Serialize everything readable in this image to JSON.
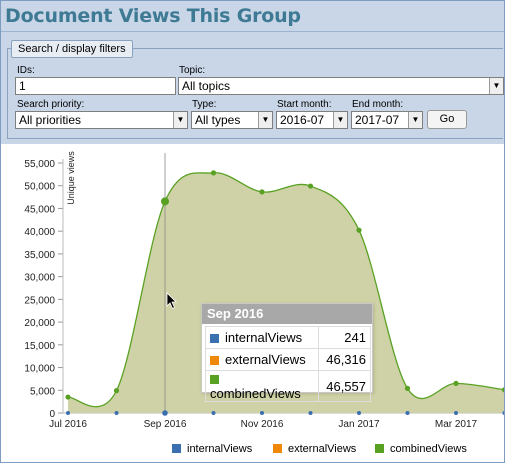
{
  "header": {
    "title": "Document Views This Group"
  },
  "filters": {
    "legend": "Search / display filters",
    "ids_label": "IDs:",
    "ids_value": "1",
    "topic_label": "Topic:",
    "topic_value": "All topics",
    "priority_label": "Search priority:",
    "priority_value": "All priorities",
    "type_label": "Type:",
    "type_value": "All types",
    "start_label": "Start month:",
    "start_value": "2016-07",
    "end_label": "End month:",
    "end_value": "2017-07",
    "go_label": "Go"
  },
  "chart_data": {
    "type": "area",
    "ylabel": "Unique views",
    "xlabel": "",
    "ylim": [
      0,
      55000
    ],
    "yticks": [
      "0",
      "5,000",
      "10,000",
      "15,000",
      "20,000",
      "25,000",
      "30,000",
      "35,000",
      "40,000",
      "45,000",
      "50,000",
      "55,000"
    ],
    "xticks": [
      "Jul 2016",
      "Sep 2016",
      "Nov 2016",
      "Jan 2017",
      "Mar 2017"
    ],
    "months": [
      "2016-07",
      "2016-08",
      "2016-09",
      "2016-10",
      "2016-11",
      "2016-12",
      "2017-01",
      "2017-02",
      "2017-03",
      "2017-04"
    ],
    "series": [
      {
        "name": "internalViews",
        "color": "#3a6fb0",
        "values": [
          10,
          20,
          241,
          30,
          40,
          30,
          20,
          10,
          10,
          10
        ]
      },
      {
        "name": "externalViews",
        "color": "#f0880a",
        "values": [
          3500,
          4900,
          46316,
          52800,
          48600,
          49900,
          40200,
          5400,
          6500,
          5100
        ]
      },
      {
        "name": "combinedViews",
        "color": "#59a123",
        "values": [
          3510,
          4920,
          46557,
          52830,
          48640,
          49930,
          40220,
          5410,
          6510,
          5110
        ]
      }
    ],
    "grid": false,
    "legend": "bottom"
  },
  "tooltip": {
    "title": "Sep 2016",
    "rows": [
      {
        "name": "internalViews",
        "value": "241",
        "color": "#3a6fb0"
      },
      {
        "name": "externalViews",
        "value": "46,316",
        "color": "#f0880a"
      },
      {
        "name": "combinedViews",
        "value": "46,557",
        "color": "#59a123"
      }
    ]
  },
  "legend_items": [
    {
      "name": "internalViews",
      "color": "#3a6fb0"
    },
    {
      "name": "externalViews",
      "color": "#f0880a"
    },
    {
      "name": "combinedViews",
      "color": "#59a123"
    }
  ]
}
